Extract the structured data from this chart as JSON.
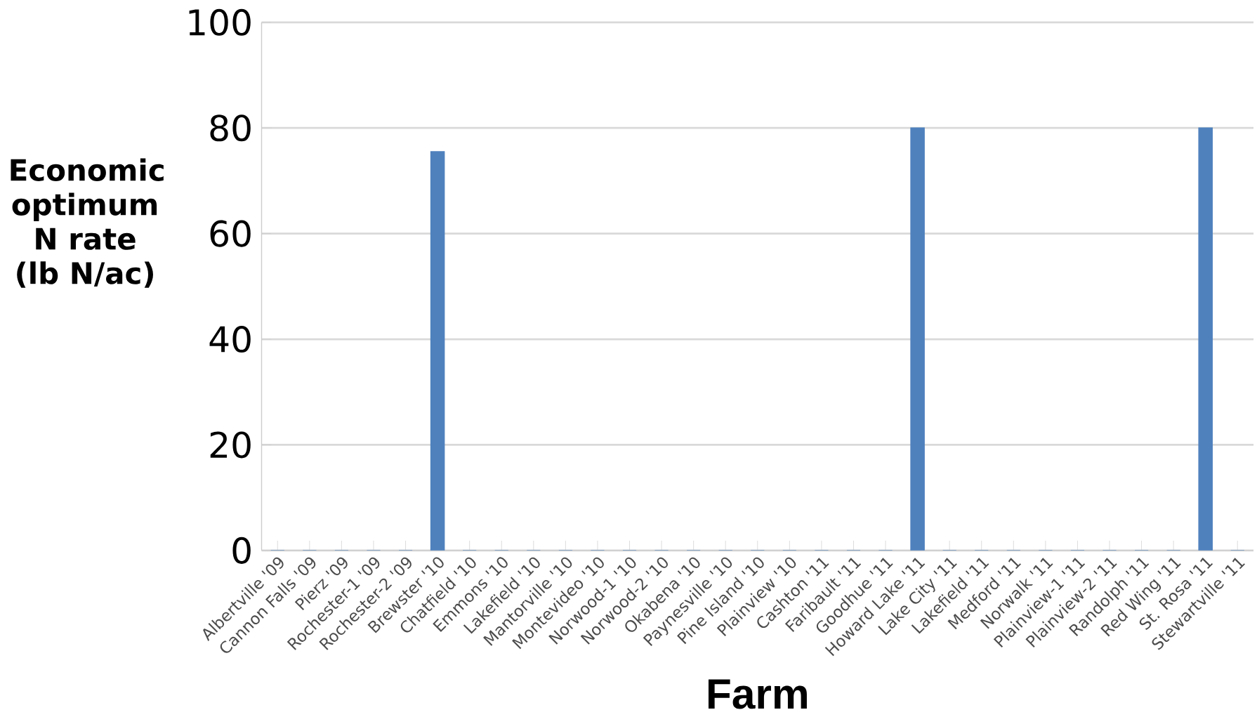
{
  "chart_data": {
    "type": "bar",
    "xlabel": "Farm",
    "ylabel": "Economic optimum N rate (lb N/ac)",
    "categories": [
      "Albertville '09",
      "Cannon Falls '09",
      "Pierz '09",
      "Rochester-1 '09",
      "Rochester-2 '09",
      "Brewster '10",
      "Chatfield '10",
      "Emmons '10",
      "Lakefield '10",
      "Mantorville '10",
      "Montevideo '10",
      "Norwood-1 '10",
      "Norwood-2 '10",
      "Okabena '10",
      "Paynesville '10",
      "Pine Island '10",
      "Plainview '10",
      "Cashton '11",
      "Faribault '11",
      "Goodhue '11",
      "Howard Lake '11",
      "Lake City '11",
      "Lakefield '11",
      "Medford '11",
      "Norwalk '11",
      "Plainview-1 '11",
      "Plainview-2 '11",
      "Randolph '11",
      "Red Wing '11",
      "St. Rosa '11",
      "Stewartville '11"
    ],
    "values": [
      0,
      0,
      0,
      0,
      0,
      75.5,
      0,
      0,
      0,
      0,
      0,
      0,
      0,
      0,
      0,
      0,
      0,
      0,
      0,
      0,
      80,
      0,
      0,
      0,
      0,
      0,
      0,
      0,
      0,
      80,
      0
    ],
    "color": "#4f81bd",
    "ylim": [
      0,
      100
    ],
    "yticks": [
      0,
      20,
      40,
      60,
      80,
      100
    ],
    "grid": "y"
  }
}
